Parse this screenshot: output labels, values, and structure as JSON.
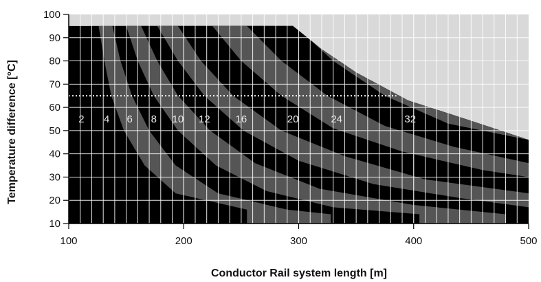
{
  "chart_data": {
    "type": "area",
    "xlabel": "Conductor Rail system length [m]",
    "ylabel": "Temperature difference [°C]",
    "xlim": [
      100,
      500
    ],
    "ylim": [
      10,
      100
    ],
    "x_ticks": [
      "100",
      "200",
      "300",
      "400",
      "500"
    ],
    "y_ticks": [
      "10",
      "20",
      "30",
      "40",
      "50",
      "60",
      "70",
      "80",
      "90",
      "100"
    ],
    "grid": true,
    "reference_line": {
      "y": 65,
      "x_from": 100,
      "x_to": 385,
      "style": "dotted"
    },
    "bands": [
      {
        "name": "2",
        "color": "#000000",
        "boundary": [
          [
            118,
            95
          ],
          [
            121,
            80
          ],
          [
            126,
            65
          ],
          [
            133,
            50
          ],
          [
            144,
            35
          ],
          [
            158,
            22
          ],
          [
            180,
            10
          ]
        ]
      },
      {
        "name": "4",
        "color": "#555555",
        "boundary": [
          [
            126,
            95
          ],
          [
            131,
            80
          ],
          [
            137,
            65
          ],
          [
            148,
            50
          ],
          [
            166,
            35
          ],
          [
            193,
            23
          ],
          [
            255,
            16
          ],
          [
            255,
            10
          ]
        ]
      },
      {
        "name": "6",
        "color": "#000000",
        "boundary": [
          [
            138,
            95
          ],
          [
            145,
            80
          ],
          [
            155,
            65
          ],
          [
            170,
            50
          ],
          [
            193,
            35
          ],
          [
            230,
            23
          ],
          [
            290,
            16
          ],
          [
            328,
            14
          ],
          [
            328,
            10
          ]
        ]
      },
      {
        "name": "8",
        "color": "#555555",
        "boundary": [
          [
            150,
            95
          ],
          [
            160,
            80
          ],
          [
            174,
            65
          ],
          [
            195,
            50
          ],
          [
            228,
            35
          ],
          [
            272,
            24
          ],
          [
            330,
            17
          ],
          [
            405,
            14
          ],
          [
            405,
            10
          ]
        ]
      },
      {
        "name": "10",
        "color": "#000000",
        "boundary": [
          [
            163,
            95
          ],
          [
            177,
            80
          ],
          [
            195,
            65
          ],
          [
            223,
            50
          ],
          [
            262,
            36
          ],
          [
            318,
            25
          ],
          [
            400,
            18
          ],
          [
            480,
            14
          ],
          [
            480,
            10
          ]
        ]
      },
      {
        "name": "12",
        "color": "#555555",
        "boundary": [
          [
            177,
            95
          ],
          [
            195,
            80
          ],
          [
            218,
            65
          ],
          [
            252,
            50
          ],
          [
            300,
            37
          ],
          [
            365,
            27
          ],
          [
            440,
            21
          ],
          [
            500,
            17
          ]
        ]
      },
      {
        "name": "16",
        "color": "#000000",
        "boundary": [
          [
            195,
            95
          ],
          [
            215,
            80
          ],
          [
            243,
            65
          ],
          [
            285,
            50
          ],
          [
            340,
            39
          ],
          [
            410,
            29
          ],
          [
            500,
            23
          ]
        ]
      },
      {
        "name": "20",
        "color": "#555555",
        "boundary": [
          [
            225,
            95
          ],
          [
            250,
            80
          ],
          [
            285,
            65
          ],
          [
            330,
            51
          ],
          [
            390,
            41
          ],
          [
            460,
            33
          ],
          [
            500,
            30
          ]
        ]
      },
      {
        "name": "24",
        "color": "#000000",
        "boundary": [
          [
            255,
            95
          ],
          [
            285,
            80
          ],
          [
            325,
            65
          ],
          [
            375,
            52
          ],
          [
            435,
            43
          ],
          [
            500,
            36
          ]
        ]
      },
      {
        "name": "32",
        "color": "#555555",
        "boundary": [
          [
            297,
            95
          ],
          [
            330,
            80
          ],
          [
            375,
            65
          ],
          [
            430,
            53
          ],
          [
            500,
            46
          ]
        ]
      }
    ],
    "envelope": [
      [
        100,
        95
      ],
      [
        295,
        95
      ],
      [
        320,
        85
      ],
      [
        350,
        75
      ],
      [
        395,
        63
      ],
      [
        445,
        55
      ],
      [
        500,
        46
      ]
    ],
    "curve_labels": [
      {
        "text": "2",
        "x": 111,
        "y": 55
      },
      {
        "text": "4",
        "x": 133,
        "y": 55
      },
      {
        "text": "6",
        "x": 153,
        "y": 55
      },
      {
        "text": "8",
        "x": 174,
        "y": 55
      },
      {
        "text": "10",
        "x": 195,
        "y": 55
      },
      {
        "text": "12",
        "x": 218,
        "y": 55
      },
      {
        "text": "16",
        "x": 250,
        "y": 55
      },
      {
        "text": "20",
        "x": 295,
        "y": 55
      },
      {
        "text": "24",
        "x": 333,
        "y": 55
      },
      {
        "text": "32",
        "x": 397,
        "y": 55
      }
    ],
    "colors": {
      "background_region": "#d9d9d9",
      "dark": "#000000",
      "gray": "#555555",
      "grid": "#ffffff",
      "reference_line": "#ffffff"
    }
  }
}
